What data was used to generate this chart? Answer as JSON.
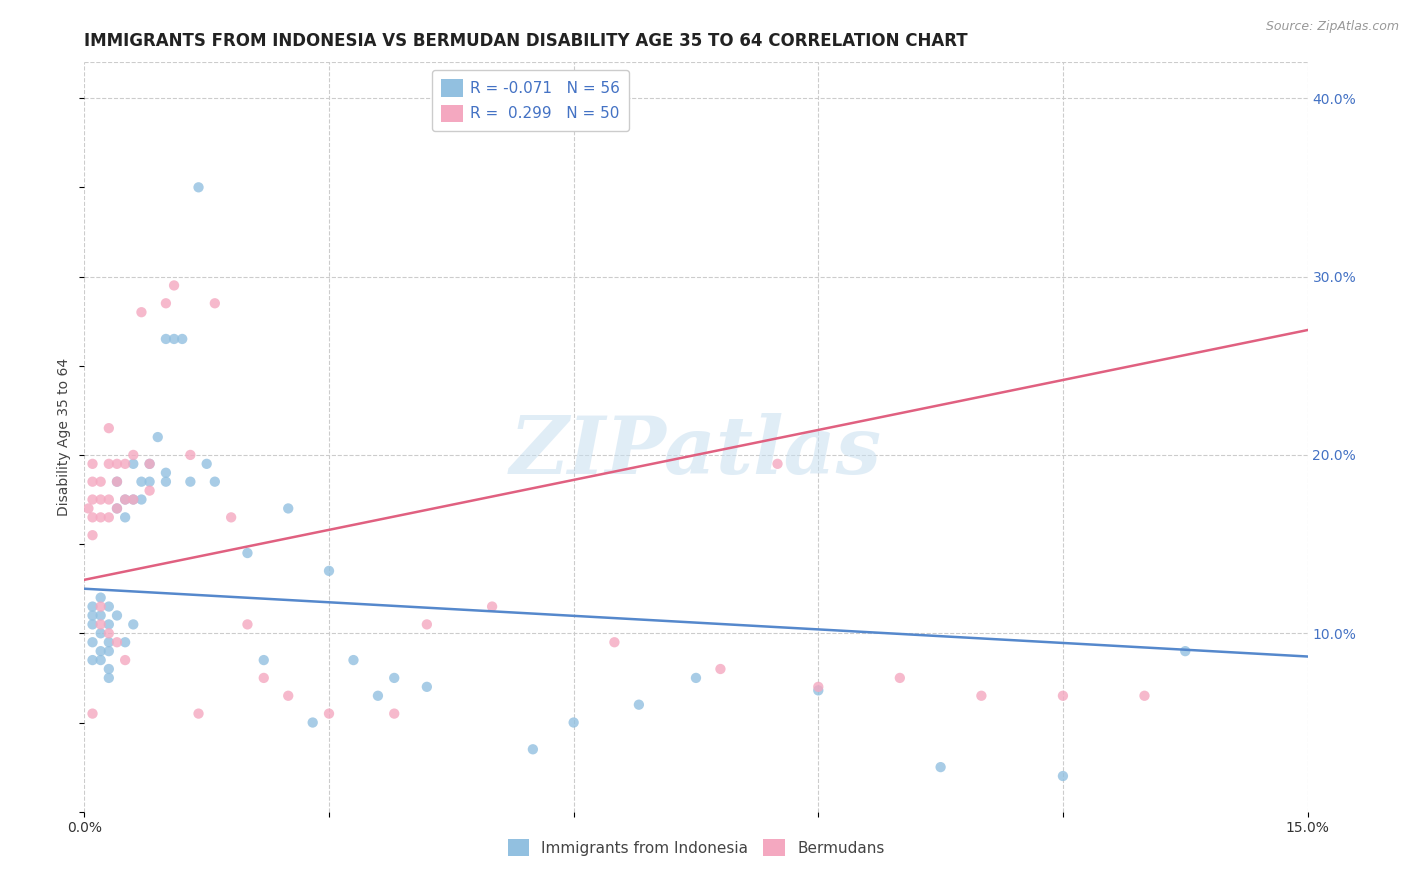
{
  "title": "IMMIGRANTS FROM INDONESIA VS BERMUDAN DISABILITY AGE 35 TO 64 CORRELATION CHART",
  "source": "Source: ZipAtlas.com",
  "ylabel": "Disability Age 35 to 64",
  "xlim": [
    0.0,
    0.15
  ],
  "ylim": [
    0.0,
    0.42
  ],
  "xticks": [
    0.0,
    0.03,
    0.06,
    0.09,
    0.12,
    0.15
  ],
  "xtick_labels": [
    "0.0%",
    "",
    "",
    "",
    "",
    "15.0%"
  ],
  "yticks_right": [
    0.1,
    0.2,
    0.3,
    0.4
  ],
  "ytick_labels_right": [
    "10.0%",
    "20.0%",
    "30.0%",
    "40.0%"
  ],
  "watermark": "ZIPatlas",
  "legend1_label": "R = -0.071   N = 56",
  "legend2_label": "R =  0.299   N = 50",
  "bottom_legend1": "Immigrants from Indonesia",
  "bottom_legend2": "Bermudans",
  "blue_scatter_x": [
    0.001,
    0.001,
    0.001,
    0.001,
    0.001,
    0.002,
    0.002,
    0.002,
    0.002,
    0.002,
    0.003,
    0.003,
    0.003,
    0.003,
    0.003,
    0.003,
    0.004,
    0.004,
    0.004,
    0.005,
    0.005,
    0.005,
    0.006,
    0.006,
    0.006,
    0.007,
    0.007,
    0.008,
    0.008,
    0.009,
    0.01,
    0.01,
    0.01,
    0.011,
    0.012,
    0.013,
    0.014,
    0.015,
    0.016,
    0.02,
    0.022,
    0.025,
    0.028,
    0.03,
    0.033,
    0.036,
    0.038,
    0.042,
    0.055,
    0.06,
    0.068,
    0.075,
    0.09,
    0.105,
    0.12,
    0.135
  ],
  "blue_scatter_y": [
    0.115,
    0.105,
    0.11,
    0.095,
    0.085,
    0.12,
    0.11,
    0.1,
    0.09,
    0.085,
    0.115,
    0.105,
    0.095,
    0.09,
    0.08,
    0.075,
    0.185,
    0.17,
    0.11,
    0.175,
    0.165,
    0.095,
    0.195,
    0.175,
    0.105,
    0.185,
    0.175,
    0.195,
    0.185,
    0.21,
    0.265,
    0.19,
    0.185,
    0.265,
    0.265,
    0.185,
    0.35,
    0.195,
    0.185,
    0.145,
    0.085,
    0.17,
    0.05,
    0.135,
    0.085,
    0.065,
    0.075,
    0.07,
    0.035,
    0.05,
    0.06,
    0.075,
    0.068,
    0.025,
    0.02,
    0.09
  ],
  "pink_scatter_x": [
    0.0005,
    0.001,
    0.001,
    0.001,
    0.001,
    0.001,
    0.001,
    0.002,
    0.002,
    0.002,
    0.002,
    0.002,
    0.003,
    0.003,
    0.003,
    0.003,
    0.003,
    0.004,
    0.004,
    0.004,
    0.004,
    0.005,
    0.005,
    0.005,
    0.006,
    0.006,
    0.007,
    0.008,
    0.008,
    0.01,
    0.011,
    0.013,
    0.014,
    0.016,
    0.018,
    0.02,
    0.022,
    0.025,
    0.03,
    0.038,
    0.042,
    0.05,
    0.065,
    0.078,
    0.085,
    0.09,
    0.1,
    0.11,
    0.12,
    0.13
  ],
  "pink_scatter_y": [
    0.17,
    0.195,
    0.185,
    0.175,
    0.165,
    0.155,
    0.055,
    0.185,
    0.175,
    0.165,
    0.115,
    0.105,
    0.215,
    0.195,
    0.175,
    0.165,
    0.1,
    0.195,
    0.185,
    0.17,
    0.095,
    0.195,
    0.175,
    0.085,
    0.2,
    0.175,
    0.28,
    0.195,
    0.18,
    0.285,
    0.295,
    0.2,
    0.055,
    0.285,
    0.165,
    0.105,
    0.075,
    0.065,
    0.055,
    0.055,
    0.105,
    0.115,
    0.095,
    0.08,
    0.195,
    0.07,
    0.075,
    0.065,
    0.065,
    0.065
  ],
  "blue_line_x": [
    0.0,
    0.15
  ],
  "blue_line_y": [
    0.125,
    0.087
  ],
  "pink_line_x": [
    0.0,
    0.15
  ],
  "pink_line_y": [
    0.13,
    0.27
  ],
  "blue_scatter_color": "#92c0e0",
  "pink_scatter_color": "#f4a8c0",
  "blue_line_color": "#5588cc",
  "pink_line_color": "#e06080",
  "grid_color": "#cccccc",
  "background_color": "#ffffff",
  "title_fontsize": 12,
  "axis_label_fontsize": 10,
  "tick_fontsize": 10,
  "legend_fontsize": 11
}
